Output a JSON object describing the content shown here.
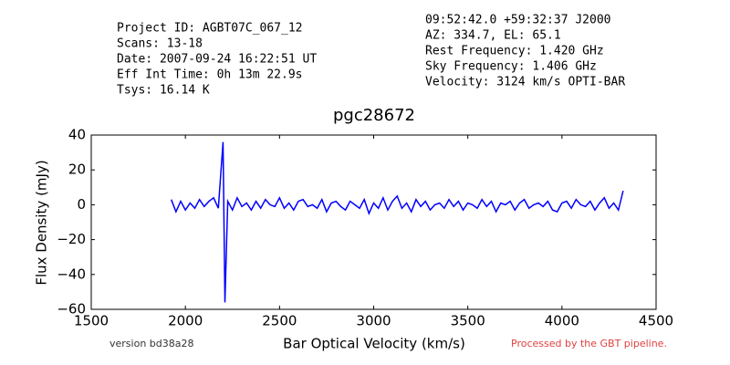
{
  "chart_data": {
    "type": "line",
    "title": "pgc28672",
    "x_label": "Bar Optical Velocity (km/s)",
    "y_label": "Flux Density (mJy)",
    "info_left": [
      "Project ID: AGBT07C_067_12",
      "Scans: 13-18",
      "Date: 2007-09-24 16:22:51 UT",
      "Eff Int Time: 0h 13m 22.9s",
      "Tsys: 16.14 K"
    ],
    "info_right": [
      "09:52:42.0 +59:32:37 J2000",
      "AZ: 334.7, EL: 65.1",
      "Rest Frequency:   1.420 GHz",
      "Sky Frequency:    1.406 GHz",
      "Velocity: 3124 km/s OPTI-BAR"
    ],
    "footer_left": "version bd38a28",
    "footer_right": "Processed by the GBT pipeline.",
    "color": "#0000ff",
    "xlim": [
      1500,
      4500
    ],
    "xticks": [
      1500,
      2000,
      2500,
      3000,
      3500,
      4000,
      4500
    ],
    "ylim": [
      -60,
      40
    ],
    "yticks": [
      {
        "value": -60,
        "label": "−60"
      },
      {
        "value": -40,
        "label": "−40"
      },
      {
        "value": -20,
        "label": "−20"
      },
      0,
      20,
      40
    ],
    "x": [
      1925,
      1950,
      1975,
      2000,
      2025,
      2050,
      2075,
      2100,
      2125,
      2150,
      2175,
      2200,
      2210,
      2225,
      2250,
      2275,
      2300,
      2325,
      2350,
      2375,
      2400,
      2425,
      2450,
      2475,
      2500,
      2525,
      2550,
      2575,
      2600,
      2625,
      2650,
      2675,
      2700,
      2725,
      2750,
      2775,
      2800,
      2825,
      2850,
      2875,
      2900,
      2925,
      2950,
      2975,
      3000,
      3025,
      3050,
      3075,
      3100,
      3125,
      3150,
      3175,
      3200,
      3225,
      3250,
      3275,
      3300,
      3325,
      3350,
      3375,
      3400,
      3425,
      3450,
      3475,
      3500,
      3525,
      3550,
      3575,
      3600,
      3625,
      3650,
      3675,
      3700,
      3725,
      3750,
      3775,
      3800,
      3825,
      3850,
      3875,
      3900,
      3925,
      3950,
      3975,
      4000,
      4025,
      4050,
      4075,
      4100,
      4125,
      4150,
      4175,
      4200,
      4225,
      4250,
      4275,
      4300,
      4325
    ],
    "values": [
      3,
      -4,
      2,
      -3,
      1,
      -2,
      3,
      -1,
      2,
      4,
      -2,
      36,
      -56,
      2,
      -3,
      4,
      -1,
      1,
      -3,
      2,
      -2,
      3,
      0,
      -1,
      4,
      -2,
      1,
      -3,
      2,
      3,
      -1,
      0,
      -2,
      3,
      -4,
      1,
      2,
      -1,
      -3,
      2,
      0,
      -2,
      3,
      -5,
      1,
      -2,
      4,
      -3,
      2,
      5,
      -2,
      1,
      -4,
      3,
      -1,
      2,
      -3,
      0,
      1,
      -2,
      3,
      -1,
      2,
      -3,
      1,
      0,
      -2,
      3,
      -1,
      2,
      -4,
      1,
      0,
      2,
      -3,
      1,
      3,
      -2,
      0,
      1,
      -1,
      2,
      -3,
      -4,
      1,
      2,
      -2,
      3,
      0,
      -1,
      2,
      -3,
      1,
      4,
      -2,
      1,
      -3,
      8
    ]
  }
}
